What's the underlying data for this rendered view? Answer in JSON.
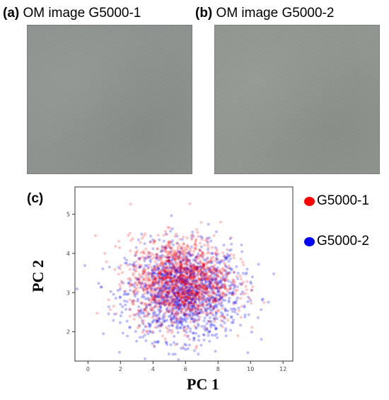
{
  "panels": {
    "a": {
      "letter": "(a)",
      "caption": "OM image G5000-1"
    },
    "b": {
      "letter": "(b)",
      "caption": "OM image G5000-2"
    },
    "c": {
      "letter": "(c)"
    }
  },
  "chart_data": {
    "type": "scatter",
    "xlabel": "PC 1",
    "ylabel": "PC 2",
    "xlim": [
      -0.8,
      12.6
    ],
    "ylim": [
      1.25,
      5.7
    ],
    "xticks": [
      0,
      2,
      4,
      6,
      8,
      10,
      12
    ],
    "yticks": [
      2,
      3,
      4,
      5
    ],
    "grid": false,
    "legend_placement": "right",
    "series": [
      {
        "name": "G5000-1",
        "color": "#ff0000",
        "center": [
          5.7,
          3.3
        ],
        "spread": [
          1.55,
          0.55
        ],
        "points_approx": 2500
      },
      {
        "name": "G5000-2",
        "color": "#0000ff",
        "center": [
          5.9,
          3.0
        ],
        "spread": [
          1.75,
          0.6
        ],
        "points_approx": 2500
      }
    ]
  }
}
